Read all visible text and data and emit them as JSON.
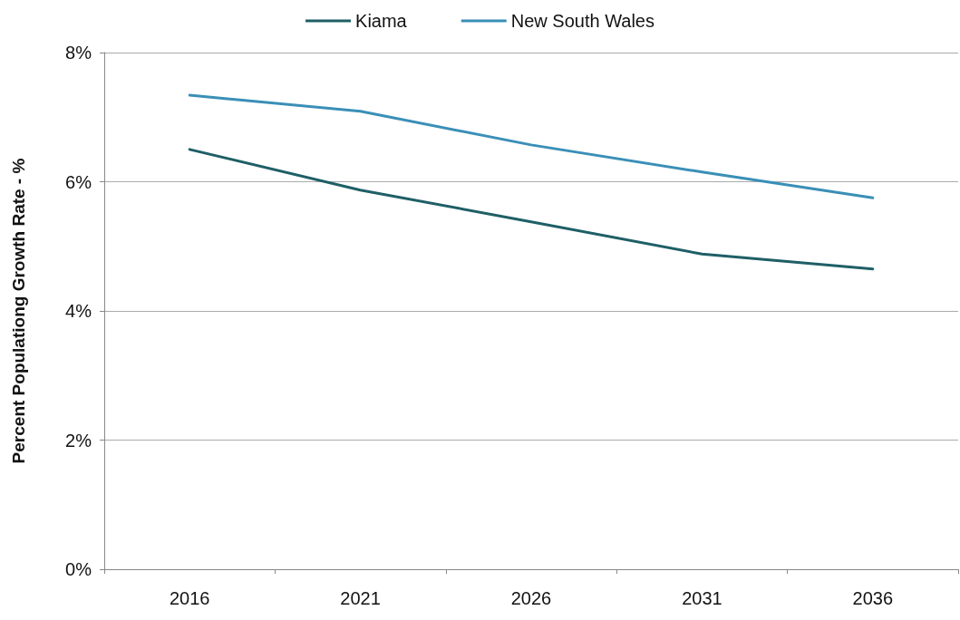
{
  "chart_data": {
    "type": "line",
    "ylabel": "Percent Populationg Growth Rate - %",
    "categories": [
      "2016",
      "2021",
      "2026",
      "2031",
      "2036"
    ],
    "series": [
      {
        "name": "Kiama",
        "color": "#1f5f66",
        "values": [
          6.5,
          5.87,
          5.38,
          4.88,
          4.65
        ]
      },
      {
        "name": "New South Wales",
        "color": "#3a8fb7",
        "values": [
          7.34,
          7.09,
          6.57,
          6.15,
          5.75
        ]
      }
    ],
    "ylim": [
      0,
      8
    ],
    "yticks": [
      {
        "value": 0,
        "label": "0%"
      },
      {
        "value": 2,
        "label": "2%"
      },
      {
        "value": 4,
        "label": "4%"
      },
      {
        "value": 6,
        "label": "6%"
      },
      {
        "value": 8,
        "label": "8%"
      }
    ],
    "grid": "y",
    "legend": "top",
    "marker": "none",
    "line_style": "solid"
  }
}
